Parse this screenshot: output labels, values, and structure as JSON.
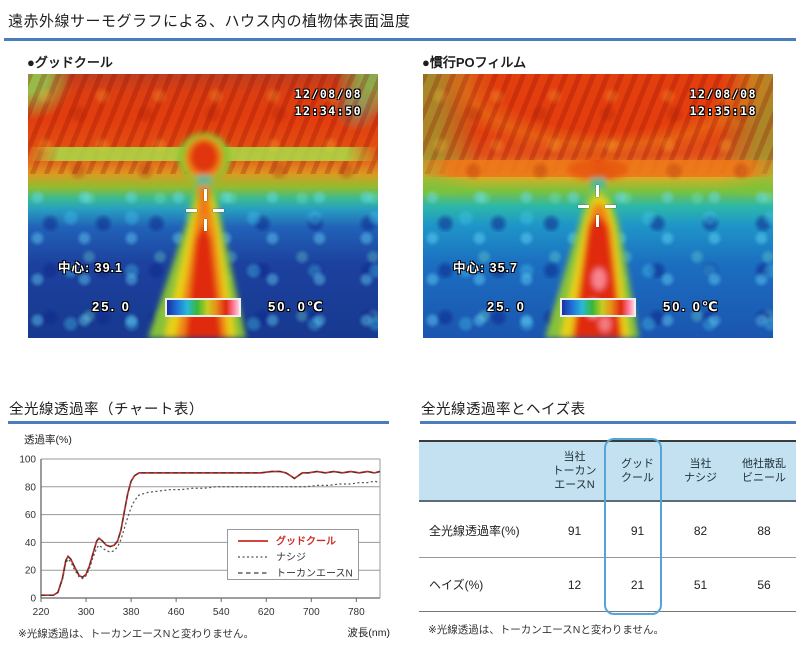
{
  "page_title": "遠赤外線サーモグラフによる、ハウス内の植物体表面温度",
  "colors": {
    "accent_blue": "#4a7dbd",
    "highlight_border": "#54a5d8",
    "table_header_bg": "#c3e1f0",
    "chart_red": "#cc2b24"
  },
  "thermal": {
    "left": {
      "label": "●グッドクール",
      "date": "12/08/08",
      "time": "12:34:50",
      "center_reading": "中心: 39.1",
      "scale_min": "25. 0",
      "scale_max": "50. 0℃"
    },
    "right": {
      "label": "●慣行POフィルム",
      "date": "12/08/08",
      "time": "12:35:18",
      "center_reading": "中心: 35.7",
      "scale_min": "25. 0",
      "scale_max": "50. 0℃"
    }
  },
  "chart_section": {
    "title": "全光線透過率（チャート表）",
    "footnote": "※光線透過は、トーカンエースNと変わりません。"
  },
  "chart_data": {
    "type": "line",
    "title": "全光線透過率（チャート表）",
    "xlabel": "波長(nm)",
    "ylabel": "透過率(%)",
    "xlim": [
      220,
      822
    ],
    "ylim": [
      0,
      100
    ],
    "xticks": [
      220,
      300,
      380,
      460,
      540,
      620,
      700,
      780
    ],
    "yticks": [
      0,
      20,
      40,
      60,
      80,
      100
    ],
    "grid": true,
    "legend_position": "right-center",
    "series": [
      {
        "name": "ナシジ",
        "color": "#555555",
        "style": "dotted",
        "points": [
          [
            220,
            2
          ],
          [
            232,
            2
          ],
          [
            242,
            2
          ],
          [
            250,
            4
          ],
          [
            258,
            13
          ],
          [
            264,
            25
          ],
          [
            268,
            28
          ],
          [
            273,
            26
          ],
          [
            280,
            20
          ],
          [
            288,
            15
          ],
          [
            294,
            14
          ],
          [
            300,
            16
          ],
          [
            306,
            21
          ],
          [
            313,
            30
          ],
          [
            319,
            36
          ],
          [
            323,
            38
          ],
          [
            329,
            36
          ],
          [
            336,
            34
          ],
          [
            343,
            33
          ],
          [
            350,
            34
          ],
          [
            356,
            37
          ],
          [
            362,
            42
          ],
          [
            368,
            50
          ],
          [
            374,
            58
          ],
          [
            380,
            65
          ],
          [
            386,
            70
          ],
          [
            394,
            74
          ],
          [
            410,
            76
          ],
          [
            430,
            77
          ],
          [
            450,
            78
          ],
          [
            470,
            78
          ],
          [
            490,
            79
          ],
          [
            510,
            79
          ],
          [
            530,
            80
          ],
          [
            550,
            80
          ],
          [
            570,
            80
          ],
          [
            590,
            80
          ],
          [
            610,
            80
          ],
          [
            630,
            80
          ],
          [
            650,
            80
          ],
          [
            670,
            80
          ],
          [
            690,
            80
          ],
          [
            710,
            81
          ],
          [
            730,
            81
          ],
          [
            750,
            82
          ],
          [
            770,
            82
          ],
          [
            785,
            83
          ],
          [
            800,
            83
          ],
          [
            812,
            84
          ],
          [
            822,
            83
          ]
        ]
      },
      {
        "name": "グッドクール",
        "color": "#cc2b24",
        "style": "solid",
        "points": [
          [
            220,
            2
          ],
          [
            232,
            2
          ],
          [
            242,
            2
          ],
          [
            250,
            4
          ],
          [
            258,
            14
          ],
          [
            264,
            27
          ],
          [
            268,
            30
          ],
          [
            273,
            28
          ],
          [
            280,
            22
          ],
          [
            288,
            16
          ],
          [
            294,
            15
          ],
          [
            300,
            17
          ],
          [
            306,
            23
          ],
          [
            313,
            33
          ],
          [
            319,
            41
          ],
          [
            323,
            43
          ],
          [
            329,
            41
          ],
          [
            336,
            38
          ],
          [
            343,
            37
          ],
          [
            350,
            38
          ],
          [
            356,
            41
          ],
          [
            362,
            49
          ],
          [
            368,
            62
          ],
          [
            374,
            75
          ],
          [
            380,
            84
          ],
          [
            386,
            88
          ],
          [
            394,
            90
          ],
          [
            410,
            90
          ],
          [
            430,
            90
          ],
          [
            450,
            90
          ],
          [
            470,
            90
          ],
          [
            490,
            90
          ],
          [
            510,
            90
          ],
          [
            530,
            90
          ],
          [
            550,
            90
          ],
          [
            570,
            90
          ],
          [
            590,
            90
          ],
          [
            610,
            90
          ],
          [
            630,
            91
          ],
          [
            645,
            91
          ],
          [
            655,
            90
          ],
          [
            663,
            88
          ],
          [
            670,
            86
          ],
          [
            677,
            88
          ],
          [
            684,
            90
          ],
          [
            695,
            90
          ],
          [
            710,
            91
          ],
          [
            725,
            90
          ],
          [
            740,
            91
          ],
          [
            755,
            90
          ],
          [
            770,
            91
          ],
          [
            785,
            90
          ],
          [
            800,
            91
          ],
          [
            812,
            90
          ],
          [
            822,
            91
          ]
        ]
      },
      {
        "name": "トーカンエースN",
        "color": "#3a3a3a",
        "style": "dashed",
        "points": [
          [
            220,
            2
          ],
          [
            232,
            2
          ],
          [
            242,
            2
          ],
          [
            250,
            4
          ],
          [
            258,
            14
          ],
          [
            264,
            27
          ],
          [
            268,
            30
          ],
          [
            273,
            28
          ],
          [
            280,
            22
          ],
          [
            288,
            16
          ],
          [
            294,
            15
          ],
          [
            300,
            17
          ],
          [
            306,
            23
          ],
          [
            313,
            33
          ],
          [
            319,
            41
          ],
          [
            323,
            43
          ],
          [
            329,
            41
          ],
          [
            336,
            38
          ],
          [
            343,
            37
          ],
          [
            350,
            38
          ],
          [
            356,
            41
          ],
          [
            362,
            49
          ],
          [
            368,
            62
          ],
          [
            374,
            75
          ],
          [
            380,
            84
          ],
          [
            386,
            88
          ],
          [
            394,
            90
          ],
          [
            410,
            90
          ],
          [
            430,
            90
          ],
          [
            450,
            90
          ],
          [
            470,
            90
          ],
          [
            490,
            90
          ],
          [
            510,
            90
          ],
          [
            530,
            90
          ],
          [
            550,
            90
          ],
          [
            570,
            90
          ],
          [
            590,
            90
          ],
          [
            610,
            90
          ],
          [
            630,
            91
          ],
          [
            645,
            91
          ],
          [
            655,
            90
          ],
          [
            663,
            88
          ],
          [
            670,
            86
          ],
          [
            677,
            88
          ],
          [
            684,
            90
          ],
          [
            695,
            90
          ],
          [
            710,
            91
          ],
          [
            725,
            90
          ],
          [
            740,
            91
          ],
          [
            755,
            90
          ],
          [
            770,
            91
          ],
          [
            785,
            90
          ],
          [
            800,
            91
          ],
          [
            812,
            90
          ],
          [
            822,
            91
          ]
        ]
      }
    ]
  },
  "table_section": {
    "title": "全光線透過率とヘイズ表",
    "footnote": "※光線透過は、トーカンエースNと変わりません。",
    "table": {
      "col_headers": [
        "当社\nトーカン\nエースN",
        "グッド\nクール",
        "当社\nナシジ",
        "他社散乱\nビニール"
      ],
      "rows": [
        {
          "label": "全光線透過率(%)",
          "values": [
            91,
            91,
            82,
            88
          ]
        },
        {
          "label": "ヘイズ(%)",
          "values": [
            12,
            21,
            51,
            56
          ]
        }
      ],
      "highlight_column": 1
    }
  }
}
